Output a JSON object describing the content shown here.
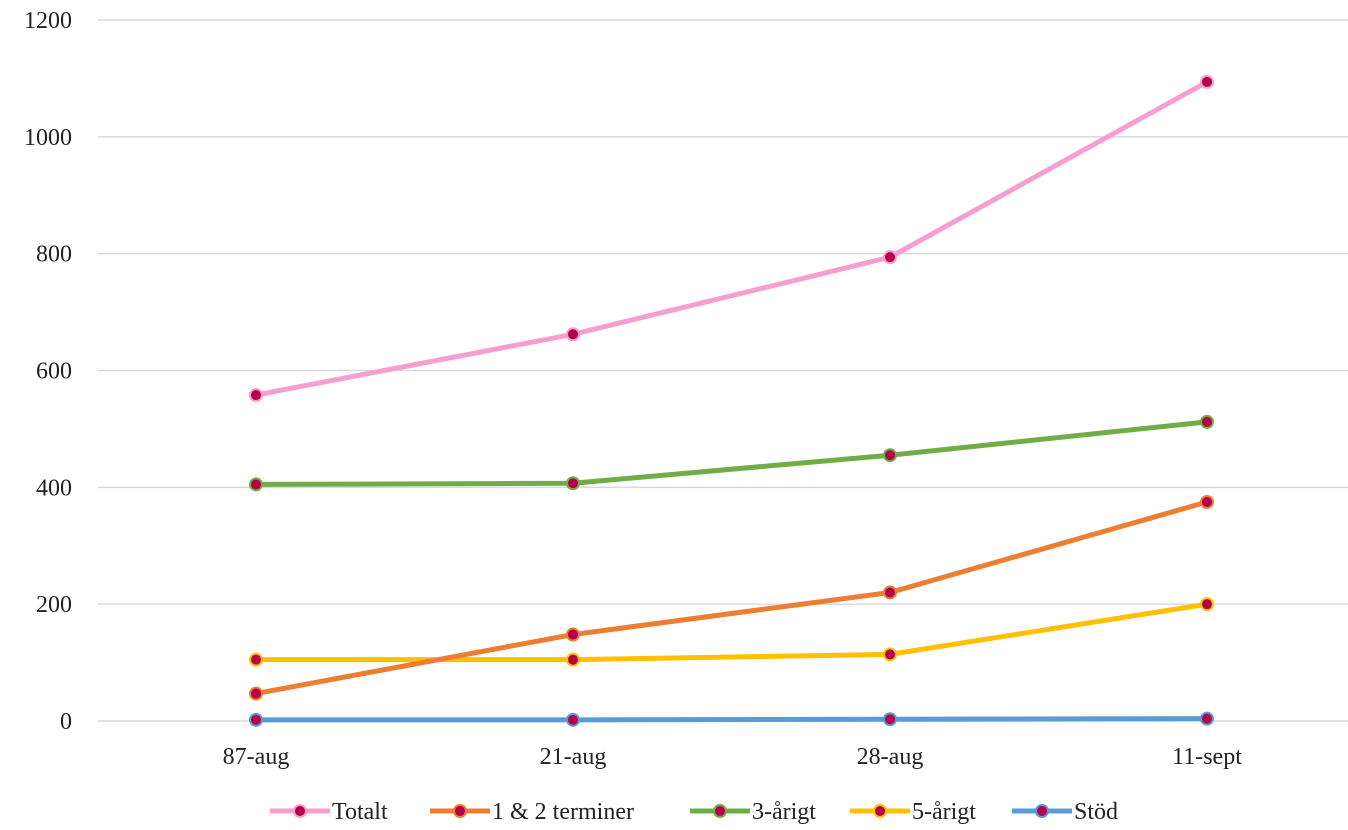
{
  "chart_data": {
    "type": "line",
    "categories": [
      "87-aug",
      "21-aug",
      "28-aug",
      "11-sept"
    ],
    "ylim": [
      0,
      1200
    ],
    "yticks": [
      0,
      200,
      400,
      600,
      800,
      1000,
      1200
    ],
    "grid": true,
    "legend_position": "bottom",
    "marker_fill": "#b5004a",
    "series": [
      {
        "name": "Totalt",
        "color": "#f59fcf",
        "values": [
          558,
          662,
          794,
          1094
        ]
      },
      {
        "name": "1 & 2 terminer",
        "color": "#ed7d31",
        "values": [
          47,
          148,
          220,
          375
        ]
      },
      {
        "name": "3-årigt",
        "color": "#70ad47",
        "values": [
          405,
          407,
          455,
          512
        ]
      },
      {
        "name": "5-årigt",
        "color": "#ffc000",
        "values": [
          105,
          105,
          114,
          200
        ]
      },
      {
        "name": "Stöd",
        "color": "#5b9bd5",
        "values": [
          2,
          2,
          3,
          4
        ]
      }
    ]
  }
}
